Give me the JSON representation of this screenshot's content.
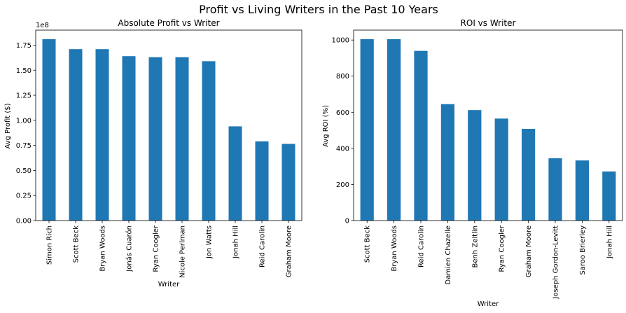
{
  "figure": {
    "suptitle": "Profit vs Living Writers in the Past 10 Years"
  },
  "colors": {
    "bar": "#1f77b4",
    "axis": "#000000",
    "background": "#ffffff"
  },
  "chart_data": [
    {
      "type": "bar",
      "title": "Absolute Profit vs Writer",
      "xlabel": "Writer",
      "ylabel": "Avg Profit ($)",
      "y_offset_label": "1e8",
      "categories": [
        "Simon Rich",
        "Scott Beck",
        "Bryan Woods",
        "Jonás Cuarón",
        "Ryan Coogler",
        "Nicole Perlman",
        "Jon Watts",
        "Jonah Hill",
        "Reid Carolin",
        "Graham Moore"
      ],
      "values": [
        1.81,
        1.71,
        1.71,
        1.64,
        1.63,
        1.63,
        1.59,
        0.94,
        0.79,
        0.765
      ],
      "ylim": [
        0,
        1.9
      ],
      "yticks": [
        0.0,
        0.25,
        0.5,
        0.75,
        1.0,
        1.25,
        1.5,
        1.75
      ],
      "ytick_labels": [
        "0.00",
        "0.25",
        "0.50",
        "0.75",
        "1.00",
        "1.25",
        "1.50",
        "1.75"
      ],
      "grid": false,
      "legend": "none"
    },
    {
      "type": "bar",
      "title": "ROI vs Writer",
      "xlabel": "Writer",
      "ylabel": "Avg ROI (%)",
      "categories": [
        "Scott Beck",
        "Bryan Woods",
        "Reid Carolin",
        "Damien Chazelle",
        "Benh Zeitlin",
        "Ryan Coogler",
        "Graham Moore",
        "Joseph Gordon-Levitt",
        "Saroo Brierley",
        "Jonah Hill"
      ],
      "values": [
        1005,
        1005,
        940,
        645,
        612,
        565,
        508,
        345,
        333,
        272
      ],
      "ylim": [
        0,
        1055
      ],
      "yticks": [
        0,
        200,
        400,
        600,
        800,
        1000
      ],
      "ytick_labels": [
        "0",
        "200",
        "400",
        "600",
        "800",
        "1000"
      ],
      "grid": false,
      "legend": "none"
    }
  ]
}
